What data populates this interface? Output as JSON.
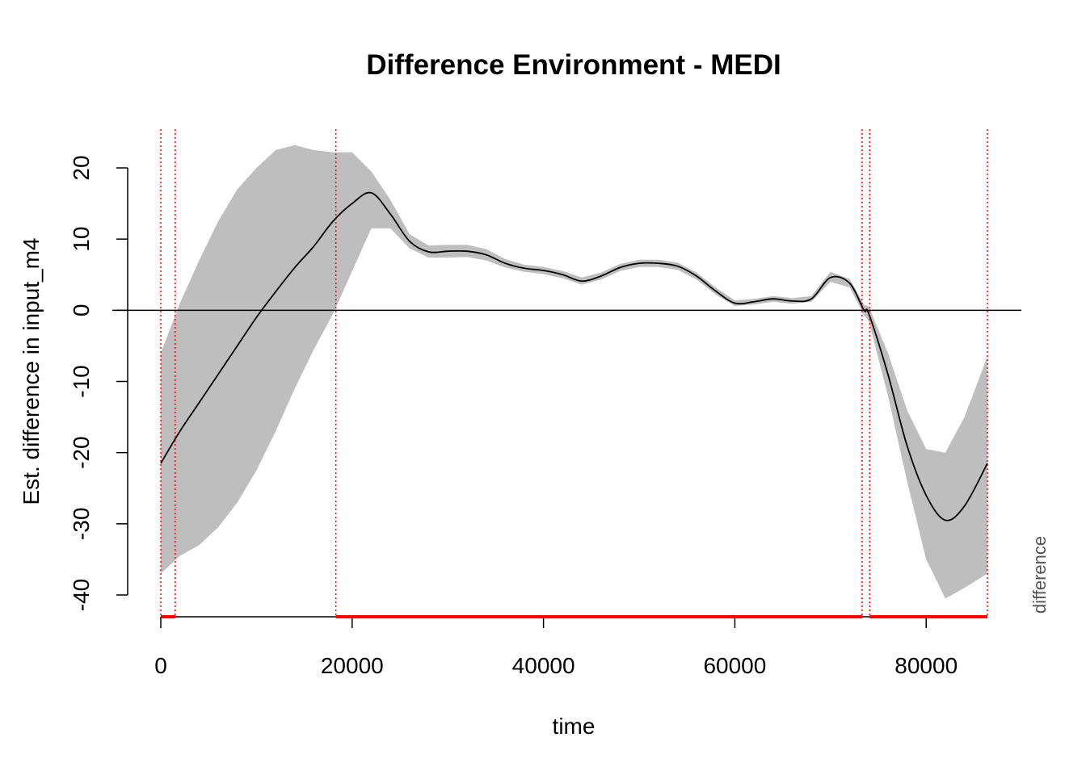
{
  "chart_data": {
    "type": "line",
    "title": "Difference Environment - MEDI",
    "xlabel": "time",
    "ylabel": "Est. difference in input_m4",
    "side_label": "difference",
    "xlim": [
      0,
      86400
    ],
    "ylim": [
      -40,
      20
    ],
    "x_ticks": [
      0,
      20000,
      40000,
      60000,
      80000
    ],
    "x_tick_labels": [
      "0",
      "20000",
      "40000",
      "60000",
      "80000"
    ],
    "y_ticks": [
      -40,
      -30,
      -20,
      -10,
      0,
      10,
      20
    ],
    "y_tick_labels": [
      "-40",
      "-30",
      "-20",
      "-10",
      "0",
      "10",
      "20"
    ],
    "grid": false,
    "reference_line_y": 0,
    "significance_boundaries": [
      0,
      1500,
      18300,
      73300,
      74100,
      86400
    ],
    "significant_intervals": [
      [
        0,
        1500
      ],
      [
        18300,
        73300
      ],
      [
        74100,
        86400
      ]
    ],
    "colors": {
      "line": "#000000",
      "band": "#bebebe",
      "significance": "#ff0000"
    },
    "series": [
      {
        "x": [
          0,
          2000,
          4000,
          6000,
          8000,
          10000,
          12000,
          14000,
          16000,
          18000,
          20000,
          22000,
          24000,
          26000,
          28000,
          30000,
          32000,
          34000,
          36000,
          38000,
          40000,
          42000,
          44000,
          46000,
          48000,
          50000,
          52000,
          54000,
          56000,
          58000,
          60000,
          62000,
          64000,
          66000,
          68000,
          70000,
          72000,
          73500,
          74000,
          76000,
          78000,
          80000,
          82000,
          84000,
          86400
        ],
        "y": [
          -21.5,
          -17.0,
          -13.0,
          -9.0,
          -5.0,
          -1.0,
          2.6,
          6.0,
          9.0,
          12.5,
          15.0,
          16.5,
          13.5,
          9.7,
          8.2,
          8.3,
          8.3,
          7.8,
          6.6,
          5.9,
          5.6,
          5.0,
          4.1,
          4.8,
          6.0,
          6.6,
          6.6,
          6.2,
          4.8,
          2.7,
          1.0,
          1.2,
          1.6,
          1.3,
          1.6,
          4.6,
          3.8,
          0.0,
          -0.5,
          -9.0,
          -19.0,
          -26.0,
          -29.5,
          -27.5,
          -21.5
        ],
        "lower": [
          -37.0,
          -34.5,
          -33.0,
          -30.5,
          -27.0,
          -22.5,
          -17.0,
          -11.0,
          -5.5,
          -0.5,
          5.5,
          11.5,
          11.5,
          8.7,
          7.4,
          7.4,
          7.5,
          7.0,
          6.0,
          5.4,
          5.1,
          4.5,
          3.6,
          4.3,
          5.5,
          6.1,
          6.1,
          5.7,
          4.3,
          2.2,
          0.6,
          0.8,
          1.2,
          0.9,
          1.2,
          4.0,
          3.2,
          -0.7,
          -1.5,
          -12.0,
          -24.0,
          -35.0,
          -40.5,
          -39.0,
          -37.0
        ],
        "upper": [
          -6.0,
          1.0,
          7.0,
          12.5,
          17.0,
          20.0,
          22.5,
          23.2,
          22.5,
          22.2,
          22.2,
          19.5,
          15.5,
          10.7,
          9.1,
          9.2,
          9.2,
          8.6,
          7.2,
          6.4,
          6.1,
          5.5,
          4.6,
          5.3,
          6.5,
          7.1,
          7.1,
          6.7,
          5.3,
          3.2,
          1.4,
          1.6,
          2.0,
          1.7,
          2.0,
          5.4,
          4.4,
          0.8,
          0.5,
          -6.0,
          -14.0,
          -19.5,
          -20.0,
          -15.0,
          -6.5
        ]
      }
    ]
  }
}
